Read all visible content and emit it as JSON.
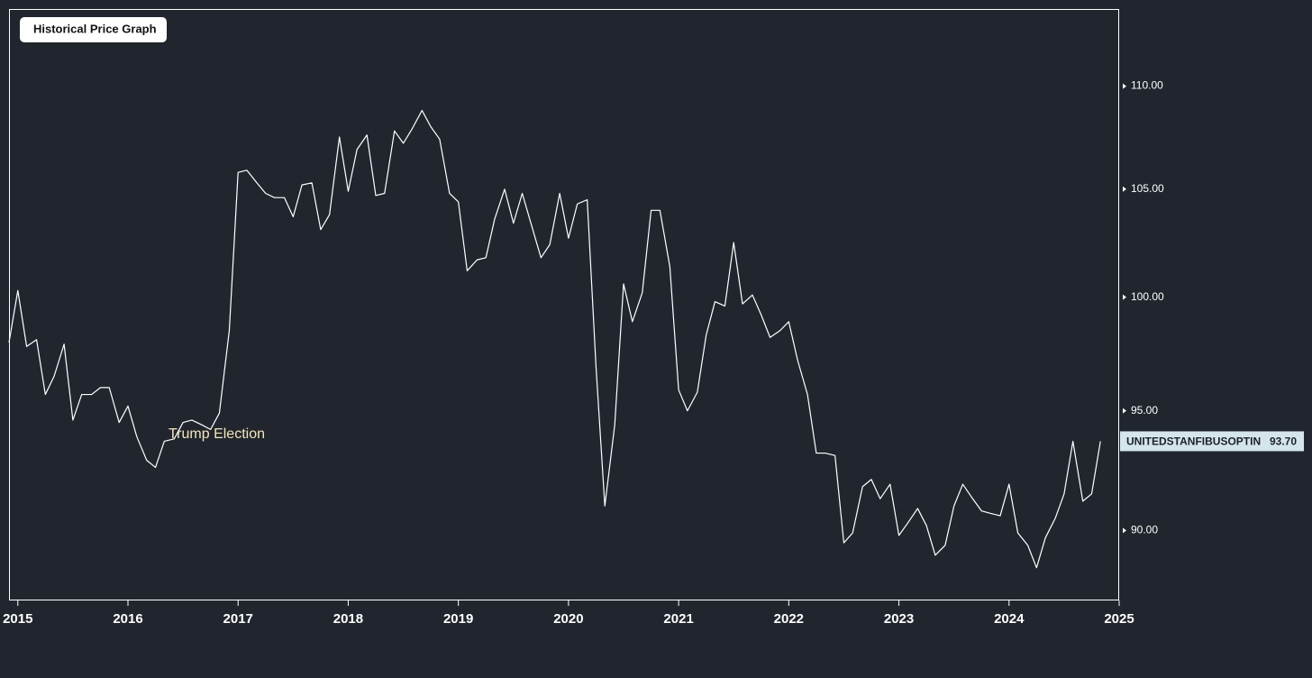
{
  "chart_data": {
    "type": "line",
    "title": "Historical Price Graph",
    "annotations": [
      "Trump Election"
    ],
    "x": [
      2014.92,
      2015.0,
      2015.08,
      2015.17,
      2015.25,
      2015.33,
      2015.42,
      2015.5,
      2015.58,
      2015.67,
      2015.75,
      2015.83,
      2015.92,
      2016.0,
      2016.08,
      2016.17,
      2016.25,
      2016.33,
      2016.42,
      2016.5,
      2016.58,
      2016.67,
      2016.75,
      2016.83,
      2016.92,
      2017.0,
      2017.08,
      2017.17,
      2017.25,
      2017.33,
      2017.42,
      2017.5,
      2017.58,
      2017.67,
      2017.75,
      2017.83,
      2017.92,
      2018.0,
      2018.08,
      2018.17,
      2018.25,
      2018.33,
      2018.42,
      2018.5,
      2018.58,
      2018.67,
      2018.75,
      2018.83,
      2018.92,
      2019.0,
      2019.08,
      2019.17,
      2019.25,
      2019.33,
      2019.42,
      2019.5,
      2019.58,
      2019.67,
      2019.75,
      2019.83,
      2019.92,
      2020.0,
      2020.08,
      2020.17,
      2020.25,
      2020.33,
      2020.42,
      2020.5,
      2020.58,
      2020.67,
      2020.75,
      2020.83,
      2020.92,
      2021.0,
      2021.08,
      2021.17,
      2021.25,
      2021.33,
      2021.42,
      2021.5,
      2021.58,
      2021.67,
      2021.75,
      2021.83,
      2021.92,
      2022.0,
      2022.08,
      2022.17,
      2022.25,
      2022.33,
      2022.42,
      2022.5,
      2022.58,
      2022.67,
      2022.75,
      2022.83,
      2022.92,
      2023.0,
      2023.08,
      2023.17,
      2023.25,
      2023.33,
      2023.42,
      2023.5,
      2023.58,
      2023.67,
      2023.75,
      2023.83,
      2023.92,
      2024.0,
      2024.08,
      2024.17,
      2024.25,
      2024.33,
      2024.42,
      2024.5,
      2024.58,
      2024.67,
      2024.75,
      2024.83
    ],
    "series": [
      {
        "name": "UNITEDSTANFIBUSOPTIN",
        "color": "#ffffff",
        "last_value_label": "93.70",
        "values": [
          97.98,
          100.3,
          97.8,
          98.1,
          95.7,
          96.5,
          97.9,
          94.6,
          95.7,
          95.7,
          96.0,
          96.0,
          94.5,
          95.2,
          93.9,
          92.9,
          92.6,
          93.7,
          93.8,
          94.5,
          94.6,
          94.4,
          94.2,
          94.9,
          98.5,
          105.8,
          105.9,
          105.3,
          104.8,
          104.6,
          104.6,
          103.7,
          105.2,
          105.3,
          103.1,
          103.8,
          107.5,
          104.9,
          106.9,
          107.6,
          104.7,
          104.8,
          107.8,
          107.2,
          107.9,
          108.8,
          108.0,
          107.4,
          104.8,
          104.4,
          101.2,
          101.7,
          101.8,
          103.6,
          105.0,
          103.4,
          104.8,
          103.2,
          101.8,
          102.4,
          104.8,
          102.7,
          104.3,
          104.5,
          96.9,
          91.0,
          94.4,
          100.6,
          98.9,
          100.2,
          104.0,
          104.0,
          101.4,
          95.9,
          95.0,
          95.8,
          98.3,
          99.8,
          99.6,
          102.5,
          99.7,
          100.1,
          99.2,
          98.2,
          98.5,
          98.9,
          97.2,
          95.7,
          93.2,
          93.2,
          93.1,
          89.5,
          89.9,
          91.8,
          92.1,
          91.3,
          91.9,
          89.8,
          90.3,
          90.9,
          90.2,
          89.0,
          89.4,
          91.0,
          91.9,
          91.3,
          90.8,
          90.7,
          90.6,
          91.9,
          89.9,
          89.4,
          88.5,
          89.7,
          90.5,
          91.5,
          93.7,
          91.2,
          91.5,
          93.7
        ]
      }
    ],
    "xlim": [
      2014.92,
      2025.0
    ],
    "xticks": [
      2015,
      2016,
      2017,
      2018,
      2019,
      2020,
      2021,
      2022,
      2023,
      2024,
      2025
    ],
    "ylim": [
      87.2,
      113.9
    ],
    "yscale": "log",
    "yticks": [
      {
        "value": 90,
        "label": "90.00"
      },
      {
        "value": 95,
        "label": "95.00"
      },
      {
        "value": 100,
        "label": "100.00"
      },
      {
        "value": 105,
        "label": "105.00"
      },
      {
        "value": 110,
        "label": "110.00"
      }
    ]
  }
}
